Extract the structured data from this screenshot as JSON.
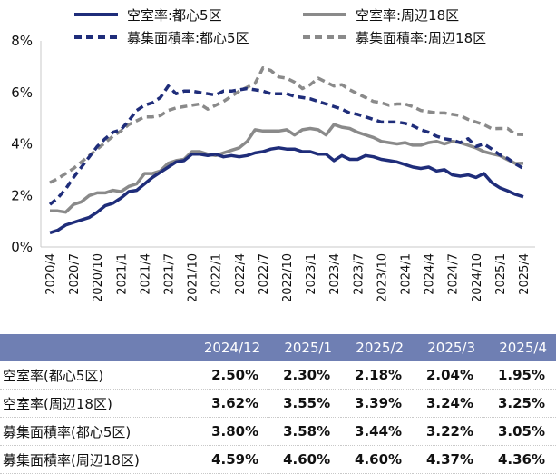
{
  "chart_data": {
    "type": "line",
    "yticks": [
      "0%",
      "2%",
      "4%",
      "6%",
      "8%"
    ],
    "ylim": [
      0,
      8
    ],
    "x_ticks": [
      "2020/4",
      "2020/7",
      "2020/10",
      "2021/1",
      "2021/4",
      "2021/7",
      "2021/10",
      "2022/1",
      "2022/4",
      "2022/7",
      "2022/10",
      "2023/1",
      "2023/4",
      "2023/7",
      "2023/10",
      "2024/1",
      "2024/4",
      "2024/7",
      "2024/10",
      "2025/1",
      "2025/4"
    ],
    "x_months": [
      "2020/4",
      "2020/5",
      "2020/6",
      "2020/7",
      "2020/8",
      "2020/9",
      "2020/10",
      "2020/11",
      "2020/12",
      "2021/1",
      "2021/2",
      "2021/3",
      "2021/4",
      "2021/5",
      "2021/6",
      "2021/7",
      "2021/8",
      "2021/9",
      "2021/10",
      "2021/11",
      "2021/12",
      "2022/1",
      "2022/2",
      "2022/3",
      "2022/4",
      "2022/5",
      "2022/6",
      "2022/7",
      "2022/8",
      "2022/9",
      "2022/10",
      "2022/11",
      "2022/12",
      "2023/1",
      "2023/2",
      "2023/3",
      "2023/4",
      "2023/5",
      "2023/6",
      "2023/7",
      "2023/8",
      "2023/9",
      "2023/10",
      "2023/11",
      "2023/12",
      "2024/1",
      "2024/2",
      "2024/3",
      "2024/4",
      "2024/5",
      "2024/6",
      "2024/7",
      "2024/8",
      "2024/9",
      "2024/10",
      "2024/11",
      "2024/12",
      "2025/1",
      "2025/2",
      "2025/3",
      "2025/4"
    ],
    "grid": false,
    "legend_position": "top",
    "series": [
      {
        "name": "空室率:都心5区",
        "color": "#1f2d7a",
        "dash": "solid",
        "values": [
          0.55,
          0.65,
          0.85,
          0.95,
          1.05,
          1.15,
          1.35,
          1.6,
          1.7,
          1.9,
          2.15,
          2.2,
          2.45,
          2.7,
          2.9,
          3.1,
          3.3,
          3.35,
          3.6,
          3.6,
          3.55,
          3.6,
          3.5,
          3.55,
          3.5,
          3.55,
          3.65,
          3.7,
          3.8,
          3.85,
          3.8,
          3.8,
          3.7,
          3.7,
          3.6,
          3.6,
          3.35,
          3.55,
          3.4,
          3.4,
          3.55,
          3.5,
          3.4,
          3.35,
          3.3,
          3.2,
          3.1,
          3.05,
          3.1,
          2.95,
          3.0,
          2.8,
          2.75,
          2.8,
          2.7,
          2.85,
          2.5,
          2.3,
          2.18,
          2.04,
          1.95
        ]
      },
      {
        "name": "空室率:周辺18区",
        "color": "#8a8a8a",
        "dash": "solid",
        "values": [
          1.4,
          1.4,
          1.35,
          1.65,
          1.75,
          2.0,
          2.1,
          2.1,
          2.2,
          2.15,
          2.35,
          2.45,
          2.85,
          2.85,
          2.95,
          3.25,
          3.35,
          3.4,
          3.7,
          3.7,
          3.6,
          3.55,
          3.65,
          3.75,
          3.85,
          4.1,
          4.55,
          4.5,
          4.5,
          4.5,
          4.55,
          4.35,
          4.55,
          4.6,
          4.55,
          4.35,
          4.75,
          4.65,
          4.6,
          4.45,
          4.35,
          4.25,
          4.1,
          4.05,
          4.0,
          4.05,
          3.95,
          3.95,
          4.05,
          4.1,
          4.0,
          4.1,
          4.05,
          3.95,
          3.85,
          3.7,
          3.62,
          3.55,
          3.39,
          3.24,
          3.25
        ]
      },
      {
        "name": "募集面積率:都心5区",
        "color": "#1f2d7a",
        "dash": "dashed",
        "values": [
          1.65,
          1.9,
          2.25,
          2.7,
          3.1,
          3.5,
          3.9,
          4.2,
          4.45,
          4.55,
          4.9,
          5.3,
          5.5,
          5.6,
          5.8,
          6.25,
          5.95,
          6.05,
          6.05,
          6.0,
          5.95,
          5.9,
          6.05,
          6.05,
          6.1,
          6.15,
          6.1,
          6.05,
          5.95,
          5.95,
          5.95,
          5.85,
          5.8,
          5.75,
          5.65,
          5.55,
          5.45,
          5.35,
          5.2,
          5.15,
          5.05,
          4.95,
          4.85,
          4.85,
          4.85,
          4.8,
          4.7,
          4.55,
          4.45,
          4.3,
          4.2,
          4.15,
          4.05,
          4.2,
          3.9,
          4.0,
          3.8,
          3.58,
          3.44,
          3.22,
          3.05
        ]
      },
      {
        "name": "募集面積率:周辺18区",
        "color": "#8a8a8a",
        "dash": "dashed",
        "values": [
          2.5,
          2.65,
          2.85,
          3.05,
          3.3,
          3.55,
          3.8,
          4.05,
          4.3,
          4.5,
          4.75,
          4.9,
          5.05,
          5.05,
          5.1,
          5.3,
          5.4,
          5.45,
          5.5,
          5.55,
          5.35,
          5.5,
          5.65,
          5.85,
          6.05,
          6.2,
          6.35,
          6.95,
          6.85,
          6.6,
          6.55,
          6.4,
          6.15,
          6.3,
          6.55,
          6.4,
          6.25,
          6.3,
          6.1,
          5.95,
          5.8,
          5.65,
          5.6,
          5.5,
          5.55,
          5.55,
          5.45,
          5.3,
          5.25,
          5.2,
          5.2,
          5.15,
          5.1,
          4.95,
          4.85,
          4.75,
          4.59,
          4.6,
          4.6,
          4.37,
          4.36
        ]
      }
    ]
  },
  "table": {
    "headers": [
      "2024/12",
      "2025/1",
      "2025/2",
      "2025/3",
      "2025/4"
    ],
    "rows": [
      {
        "label": "空室率(都心5区)",
        "values": [
          "2.50%",
          "2.30%",
          "2.18%",
          "2.04%",
          "1.95%"
        ]
      },
      {
        "label": "空室率(周辺18区)",
        "values": [
          "3.62%",
          "3.55%",
          "3.39%",
          "3.24%",
          "3.25%"
        ]
      },
      {
        "label": "募集面積率(都心5区)",
        "values": [
          "3.80%",
          "3.58%",
          "3.44%",
          "3.22%",
          "3.05%"
        ]
      },
      {
        "label": "募集面積率(周辺18区)",
        "values": [
          "4.59%",
          "4.60%",
          "4.60%",
          "4.37%",
          "4.36%"
        ]
      }
    ]
  }
}
